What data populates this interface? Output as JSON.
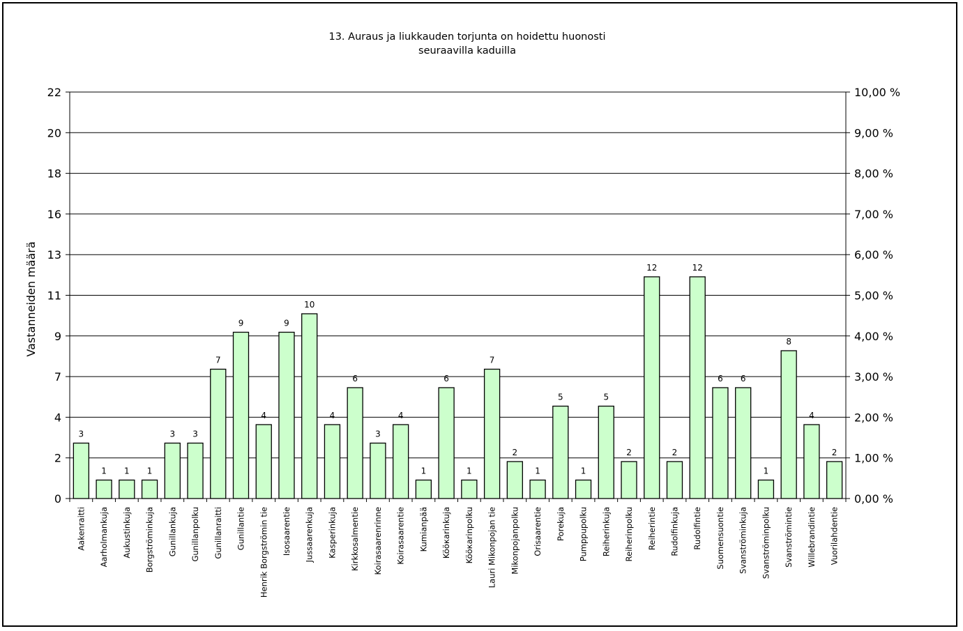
{
  "chart_data": {
    "type": "bar",
    "title_lines": [
      "13. Auraus ja liukkauden torjunta on hoidettu huonosti",
      "seuraavilla kaduilla"
    ],
    "ylabel": "Vastanneiden määrä",
    "ylim": [
      0,
      22
    ],
    "y2lim": [
      0,
      10
    ],
    "y_tick_labels": [
      "0",
      "2",
      "4",
      "7",
      "9",
      "11",
      "13",
      "16",
      "18",
      "20",
      "22"
    ],
    "y2_tick_labels": [
      "0,00 %",
      "1,00 %",
      "2,00 %",
      "3,00 %",
      "4,00 %",
      "5,00 %",
      "6,00 %",
      "7,00 %",
      "8,00 %",
      "9,00 %",
      "10,00 %"
    ],
    "grid": true,
    "legend": "none",
    "bar_color": "#ccffcc",
    "categories": [
      "Aakenraitti",
      "Aarholmankuja",
      "Aukustinkuja",
      "Borgströminkuja",
      "Gunillankuja",
      "Gunillanpolku",
      "Gunillanraitti",
      "Gunillantie",
      "Henrik Borgströmin tie",
      "Isosaarentie",
      "Jussaarenkuja",
      "Kasperinkuja",
      "Kirkkosalmentie",
      "Koirasaarenrinne",
      "Koirasaarentie",
      "Kumianpää",
      "Kööкarinkuja",
      "Kööкarinpolku",
      "Lauri Mikonpojan tie",
      "Mikonpojanpolku",
      "Orisaarentie",
      "Porekuja",
      "Pumppupolku",
      "Reiherinkuja",
      "Reiherinpolku",
      "Reiherintie",
      "Rudolfinkuja",
      "Rudolfintie",
      "Suomensuontie",
      "Svanströminkuja",
      "Svanströminpolku",
      "Svanströmintie",
      "Willebrandintie",
      "Vuorilahdentie"
    ],
    "values": [
      3,
      1,
      1,
      1,
      3,
      3,
      7,
      9,
      4,
      9,
      10,
      4,
      6,
      3,
      4,
      1,
      6,
      1,
      7,
      2,
      1,
      5,
      1,
      5,
      2,
      12,
      2,
      12,
      6,
      6,
      1,
      8,
      4,
      2
    ]
  }
}
